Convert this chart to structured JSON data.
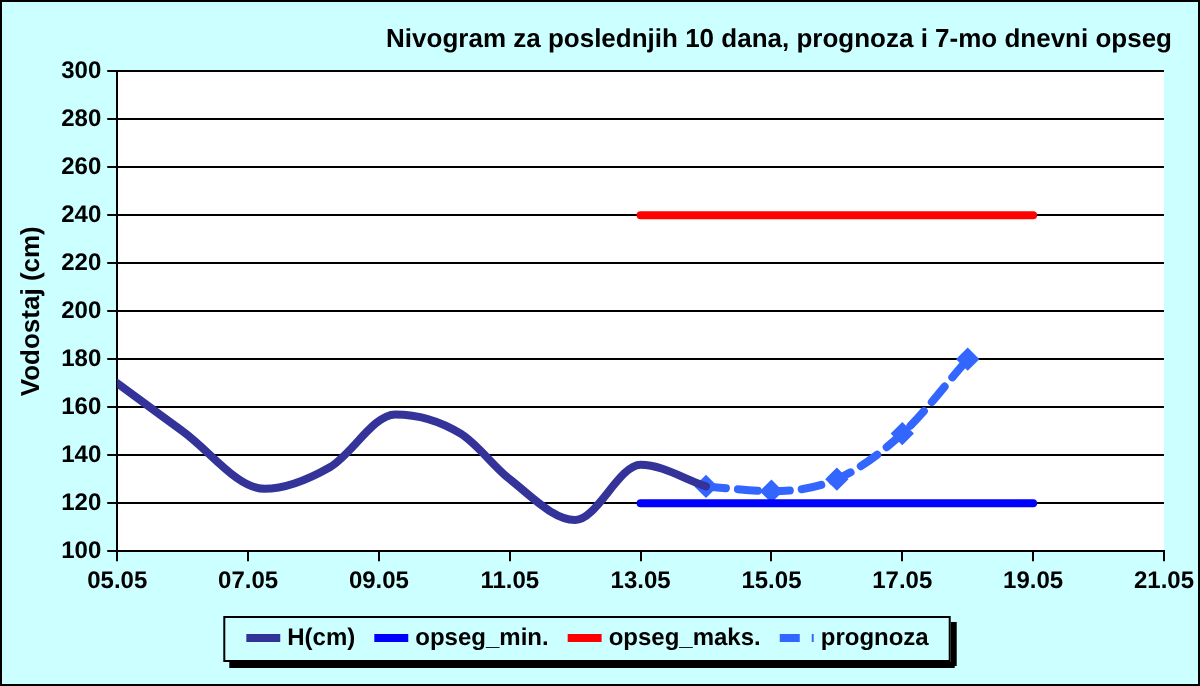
{
  "chart_data": {
    "type": "line",
    "title": "Nivogram za poslednjih 10 dana, prognoza i 7-mo dnevni opseg",
    "ylabel": "Vodostaj (cm)",
    "xlim": [
      "--05-05",
      "--05-21"
    ],
    "xticks": [
      {
        "value": "--05-05",
        "label": "05.05"
      },
      {
        "value": "--05-07",
        "label": "07.05"
      },
      {
        "value": "--05-09",
        "label": "09.05"
      },
      {
        "value": "--05-11",
        "label": "11.05"
      },
      {
        "value": "--05-13",
        "label": "13.05"
      },
      {
        "value": "--05-15",
        "label": "15.05"
      },
      {
        "value": "--05-17",
        "label": "17.05"
      },
      {
        "value": "--05-19",
        "label": "19.05"
      },
      {
        "value": "--05-21",
        "label": "21.05"
      }
    ],
    "ylim": [
      100,
      300
    ],
    "yticks": [
      100,
      120,
      140,
      160,
      180,
      200,
      220,
      240,
      260,
      280,
      300
    ],
    "grid": "y",
    "legend": "bottom",
    "series": [
      {
        "name": "H(cm)",
        "color": "#333399",
        "x": [
          "--05-05",
          "--05-06",
          "--05-07T06:00",
          "--05-08T06:00",
          "--05-09T06:00",
          "--05-10T06:00",
          "--05-11",
          "--05-12",
          "--05-13",
          "--05-14"
        ],
        "values": [
          170,
          150,
          126,
          135,
          157,
          149,
          130,
          113,
          136,
          127
        ]
      },
      {
        "name": "opseg_min.",
        "color": "#0000ff",
        "x": [
          "--05-13",
          "--05-19"
        ],
        "values": [
          120,
          120
        ]
      },
      {
        "name": "opseg_maks.",
        "color": "#ff0000",
        "x": [
          "--05-13",
          "--05-19"
        ],
        "values": [
          240,
          240
        ]
      },
      {
        "name": "prognoza",
        "color": "#3366ff",
        "x": [
          "--05-14",
          "--05-15",
          "--05-16",
          "--05-17",
          "--05-18"
        ],
        "values": [
          127,
          125,
          130,
          149,
          180
        ],
        "line_style": "dashed",
        "marker": "diamond"
      }
    ]
  }
}
